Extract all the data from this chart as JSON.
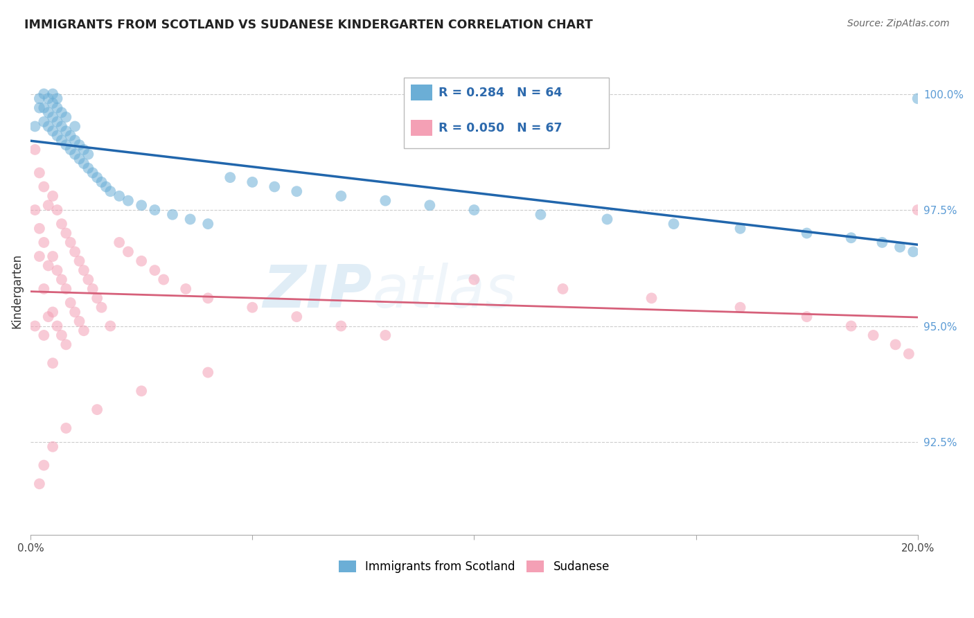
{
  "title": "IMMIGRANTS FROM SCOTLAND VS SUDANESE KINDERGARTEN CORRELATION CHART",
  "source": "Source: ZipAtlas.com",
  "ylabel": "Kindergarten",
  "ytick_labels": [
    "92.5%",
    "95.0%",
    "97.5%",
    "100.0%"
  ],
  "ytick_values": [
    0.925,
    0.95,
    0.975,
    1.0
  ],
  "xlim": [
    0.0,
    0.2
  ],
  "ylim": [
    0.905,
    1.01
  ],
  "legend_r_blue": "R = 0.284",
  "legend_n_blue": "N = 64",
  "legend_r_pink": "R = 0.050",
  "legend_n_pink": "N = 67",
  "blue_color": "#6baed6",
  "pink_color": "#f4a0b5",
  "blue_line_color": "#2166ac",
  "pink_line_color": "#d6607a",
  "watermark_zip": "ZIP",
  "watermark_atlas": "atlas",
  "scotland_x": [
    0.001,
    0.002,
    0.002,
    0.003,
    0.003,
    0.003,
    0.004,
    0.004,
    0.004,
    0.005,
    0.005,
    0.005,
    0.005,
    0.006,
    0.006,
    0.006,
    0.006,
    0.007,
    0.007,
    0.007,
    0.008,
    0.008,
    0.008,
    0.009,
    0.009,
    0.01,
    0.01,
    0.01,
    0.011,
    0.011,
    0.012,
    0.012,
    0.013,
    0.013,
    0.014,
    0.015,
    0.016,
    0.017,
    0.018,
    0.02,
    0.022,
    0.025,
    0.028,
    0.032,
    0.036,
    0.04,
    0.045,
    0.05,
    0.055,
    0.06,
    0.07,
    0.08,
    0.09,
    0.1,
    0.115,
    0.13,
    0.145,
    0.16,
    0.175,
    0.185,
    0.192,
    0.196,
    0.199,
    0.2
  ],
  "scotland_y": [
    0.993,
    0.997,
    0.999,
    0.994,
    0.997,
    1.0,
    0.993,
    0.996,
    0.999,
    0.992,
    0.995,
    0.998,
    1.0,
    0.991,
    0.994,
    0.997,
    0.999,
    0.99,
    0.993,
    0.996,
    0.989,
    0.992,
    0.995,
    0.988,
    0.991,
    0.987,
    0.99,
    0.993,
    0.986,
    0.989,
    0.985,
    0.988,
    0.984,
    0.987,
    0.983,
    0.982,
    0.981,
    0.98,
    0.979,
    0.978,
    0.977,
    0.976,
    0.975,
    0.974,
    0.973,
    0.972,
    0.982,
    0.981,
    0.98,
    0.979,
    0.978,
    0.977,
    0.976,
    0.975,
    0.974,
    0.973,
    0.972,
    0.971,
    0.97,
    0.969,
    0.968,
    0.967,
    0.966,
    0.999
  ],
  "sudanese_x": [
    0.001,
    0.001,
    0.002,
    0.002,
    0.002,
    0.003,
    0.003,
    0.003,
    0.003,
    0.004,
    0.004,
    0.004,
    0.005,
    0.005,
    0.005,
    0.005,
    0.006,
    0.006,
    0.006,
    0.007,
    0.007,
    0.007,
    0.008,
    0.008,
    0.008,
    0.009,
    0.009,
    0.01,
    0.01,
    0.011,
    0.011,
    0.012,
    0.012,
    0.013,
    0.014,
    0.015,
    0.016,
    0.018,
    0.02,
    0.022,
    0.025,
    0.028,
    0.03,
    0.035,
    0.04,
    0.05,
    0.06,
    0.07,
    0.08,
    0.1,
    0.12,
    0.14,
    0.16,
    0.175,
    0.185,
    0.19,
    0.195,
    0.198,
    0.2,
    0.04,
    0.025,
    0.015,
    0.008,
    0.005,
    0.003,
    0.002,
    0.001
  ],
  "sudanese_y": [
    0.988,
    0.975,
    0.983,
    0.971,
    0.965,
    0.98,
    0.968,
    0.958,
    0.948,
    0.976,
    0.963,
    0.952,
    0.978,
    0.965,
    0.953,
    0.942,
    0.975,
    0.962,
    0.95,
    0.972,
    0.96,
    0.948,
    0.97,
    0.958,
    0.946,
    0.968,
    0.955,
    0.966,
    0.953,
    0.964,
    0.951,
    0.962,
    0.949,
    0.96,
    0.958,
    0.956,
    0.954,
    0.95,
    0.968,
    0.966,
    0.964,
    0.962,
    0.96,
    0.958,
    0.956,
    0.954,
    0.952,
    0.95,
    0.948,
    0.96,
    0.958,
    0.956,
    0.954,
    0.952,
    0.95,
    0.948,
    0.946,
    0.944,
    0.975,
    0.94,
    0.936,
    0.932,
    0.928,
    0.924,
    0.92,
    0.916,
    0.95
  ]
}
